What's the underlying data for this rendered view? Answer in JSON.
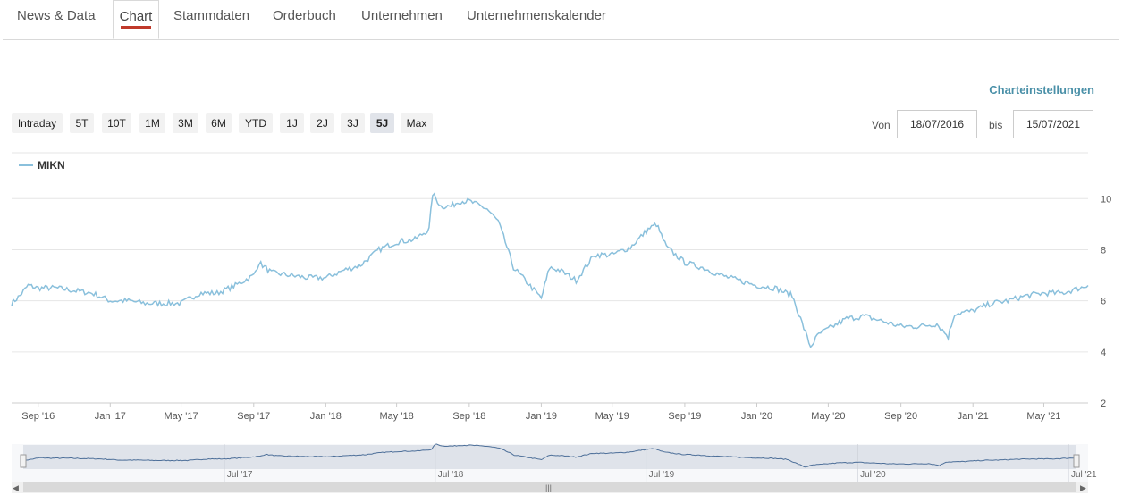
{
  "tabs": [
    {
      "id": "news",
      "label": "News & Data",
      "active": false
    },
    {
      "id": "chart",
      "label": "Chart",
      "active": true
    },
    {
      "id": "stammdaten",
      "label": "Stammdaten",
      "active": false
    },
    {
      "id": "orderbuch",
      "label": "Orderbuch",
      "active": false
    },
    {
      "id": "unternehmen",
      "label": "Unternehmen",
      "active": false
    },
    {
      "id": "kalender",
      "label": "Unternehmenskalender",
      "active": false
    }
  ],
  "settings_label": "Charteinstellungen",
  "ranges": [
    {
      "label": "Intraday",
      "active": false
    },
    {
      "label": "5T",
      "active": false
    },
    {
      "label": "10T",
      "active": false
    },
    {
      "label": "1M",
      "active": false
    },
    {
      "label": "3M",
      "active": false
    },
    {
      "label": "6M",
      "active": false
    },
    {
      "label": "YTD",
      "active": false
    },
    {
      "label": "1J",
      "active": false
    },
    {
      "label": "2J",
      "active": false
    },
    {
      "label": "3J",
      "active": false
    },
    {
      "label": "5J",
      "active": true
    },
    {
      "label": "Max",
      "active": false
    }
  ],
  "date_range": {
    "from_label": "Von",
    "from_value": "18/07/2016",
    "to_label": "bis",
    "to_value": "15/07/2021"
  },
  "colors": {
    "series": "#8ac0dc",
    "navigator_fill": "#dfe3ea",
    "accent": "#c0392b",
    "link": "#4a90a8"
  },
  "chart_data": {
    "type": "line",
    "legend": [
      "MIKN"
    ],
    "y_ticks": [
      2,
      4,
      6,
      8,
      10
    ],
    "ylim": [
      2,
      10.5
    ],
    "x_ticks": [
      "Sep '16",
      "Jan '17",
      "May '17",
      "Sep '17",
      "Jan '18",
      "May '18",
      "Sep '18",
      "Jan '19",
      "May '19",
      "Sep '19",
      "Jan '20",
      "May '20",
      "Sep '20",
      "Jan '21",
      "May '21"
    ],
    "navigator_ticks": [
      "Jul '17",
      "Jul '18",
      "Jul '19",
      "Jul '20",
      "Jul '21"
    ],
    "grid": true,
    "series": [
      {
        "name": "MIKN",
        "points": [
          [
            "2016-07-18",
            5.9
          ],
          [
            "2016-08-01",
            6.2
          ],
          [
            "2016-08-15",
            6.6
          ],
          [
            "2016-09-01",
            6.5
          ],
          [
            "2016-10-01",
            6.5
          ],
          [
            "2016-11-01",
            6.4
          ],
          [
            "2016-12-01",
            6.3
          ],
          [
            "2017-01-01",
            6.0
          ],
          [
            "2017-02-01",
            6.0
          ],
          [
            "2017-03-01",
            5.9
          ],
          [
            "2017-04-01",
            5.9
          ],
          [
            "2017-05-01",
            5.9
          ],
          [
            "2017-06-01",
            6.3
          ],
          [
            "2017-07-01",
            6.3
          ],
          [
            "2017-08-01",
            6.6
          ],
          [
            "2017-09-01",
            7.0
          ],
          [
            "2017-09-10",
            7.5
          ],
          [
            "2017-10-01",
            7.1
          ],
          [
            "2017-11-01",
            7.0
          ],
          [
            "2017-12-01",
            6.9
          ],
          [
            "2018-01-01",
            6.9
          ],
          [
            "2018-02-01",
            7.2
          ],
          [
            "2018-03-01",
            7.4
          ],
          [
            "2018-04-01",
            8.0
          ],
          [
            "2018-05-01",
            8.3
          ],
          [
            "2018-06-01",
            8.4
          ],
          [
            "2018-06-25",
            8.8
          ],
          [
            "2018-07-01",
            10.2
          ],
          [
            "2018-07-15",
            9.7
          ],
          [
            "2018-08-01",
            9.7
          ],
          [
            "2018-08-15",
            9.9
          ],
          [
            "2018-09-01",
            9.9
          ],
          [
            "2018-10-01",
            9.6
          ],
          [
            "2018-10-20",
            9.1
          ],
          [
            "2018-11-01",
            8.3
          ],
          [
            "2018-11-15",
            7.3
          ],
          [
            "2018-12-01",
            6.9
          ],
          [
            "2019-01-01",
            6.1
          ],
          [
            "2019-01-15",
            7.3
          ],
          [
            "2019-02-01",
            7.2
          ],
          [
            "2019-03-01",
            6.8
          ],
          [
            "2019-04-01",
            7.8
          ],
          [
            "2019-05-01",
            7.8
          ],
          [
            "2019-06-01",
            8.1
          ],
          [
            "2019-07-01",
            8.8
          ],
          [
            "2019-07-15",
            9.0
          ],
          [
            "2019-08-01",
            8.1
          ],
          [
            "2019-09-01",
            7.5
          ],
          [
            "2019-10-01",
            7.3
          ],
          [
            "2019-11-01",
            7.0
          ],
          [
            "2019-12-01",
            6.8
          ],
          [
            "2020-01-01",
            6.6
          ],
          [
            "2020-02-01",
            6.5
          ],
          [
            "2020-03-01",
            6.2
          ],
          [
            "2020-03-15",
            5.3
          ],
          [
            "2020-04-01",
            4.2
          ],
          [
            "2020-04-15",
            4.7
          ],
          [
            "2020-05-01",
            4.9
          ],
          [
            "2020-06-01",
            5.3
          ],
          [
            "2020-07-01",
            5.4
          ],
          [
            "2020-08-01",
            5.2
          ],
          [
            "2020-09-01",
            5.0
          ],
          [
            "2020-10-01",
            5.0
          ],
          [
            "2020-11-01",
            5.1
          ],
          [
            "2020-11-20",
            4.6
          ],
          [
            "2020-12-01",
            5.5
          ],
          [
            "2021-01-01",
            5.6
          ],
          [
            "2021-02-01",
            5.9
          ],
          [
            "2021-03-01",
            6.0
          ],
          [
            "2021-04-01",
            6.2
          ],
          [
            "2021-05-01",
            6.3
          ],
          [
            "2021-06-01",
            6.3
          ],
          [
            "2021-07-01",
            6.5
          ],
          [
            "2021-07-15",
            6.6
          ]
        ]
      }
    ]
  }
}
